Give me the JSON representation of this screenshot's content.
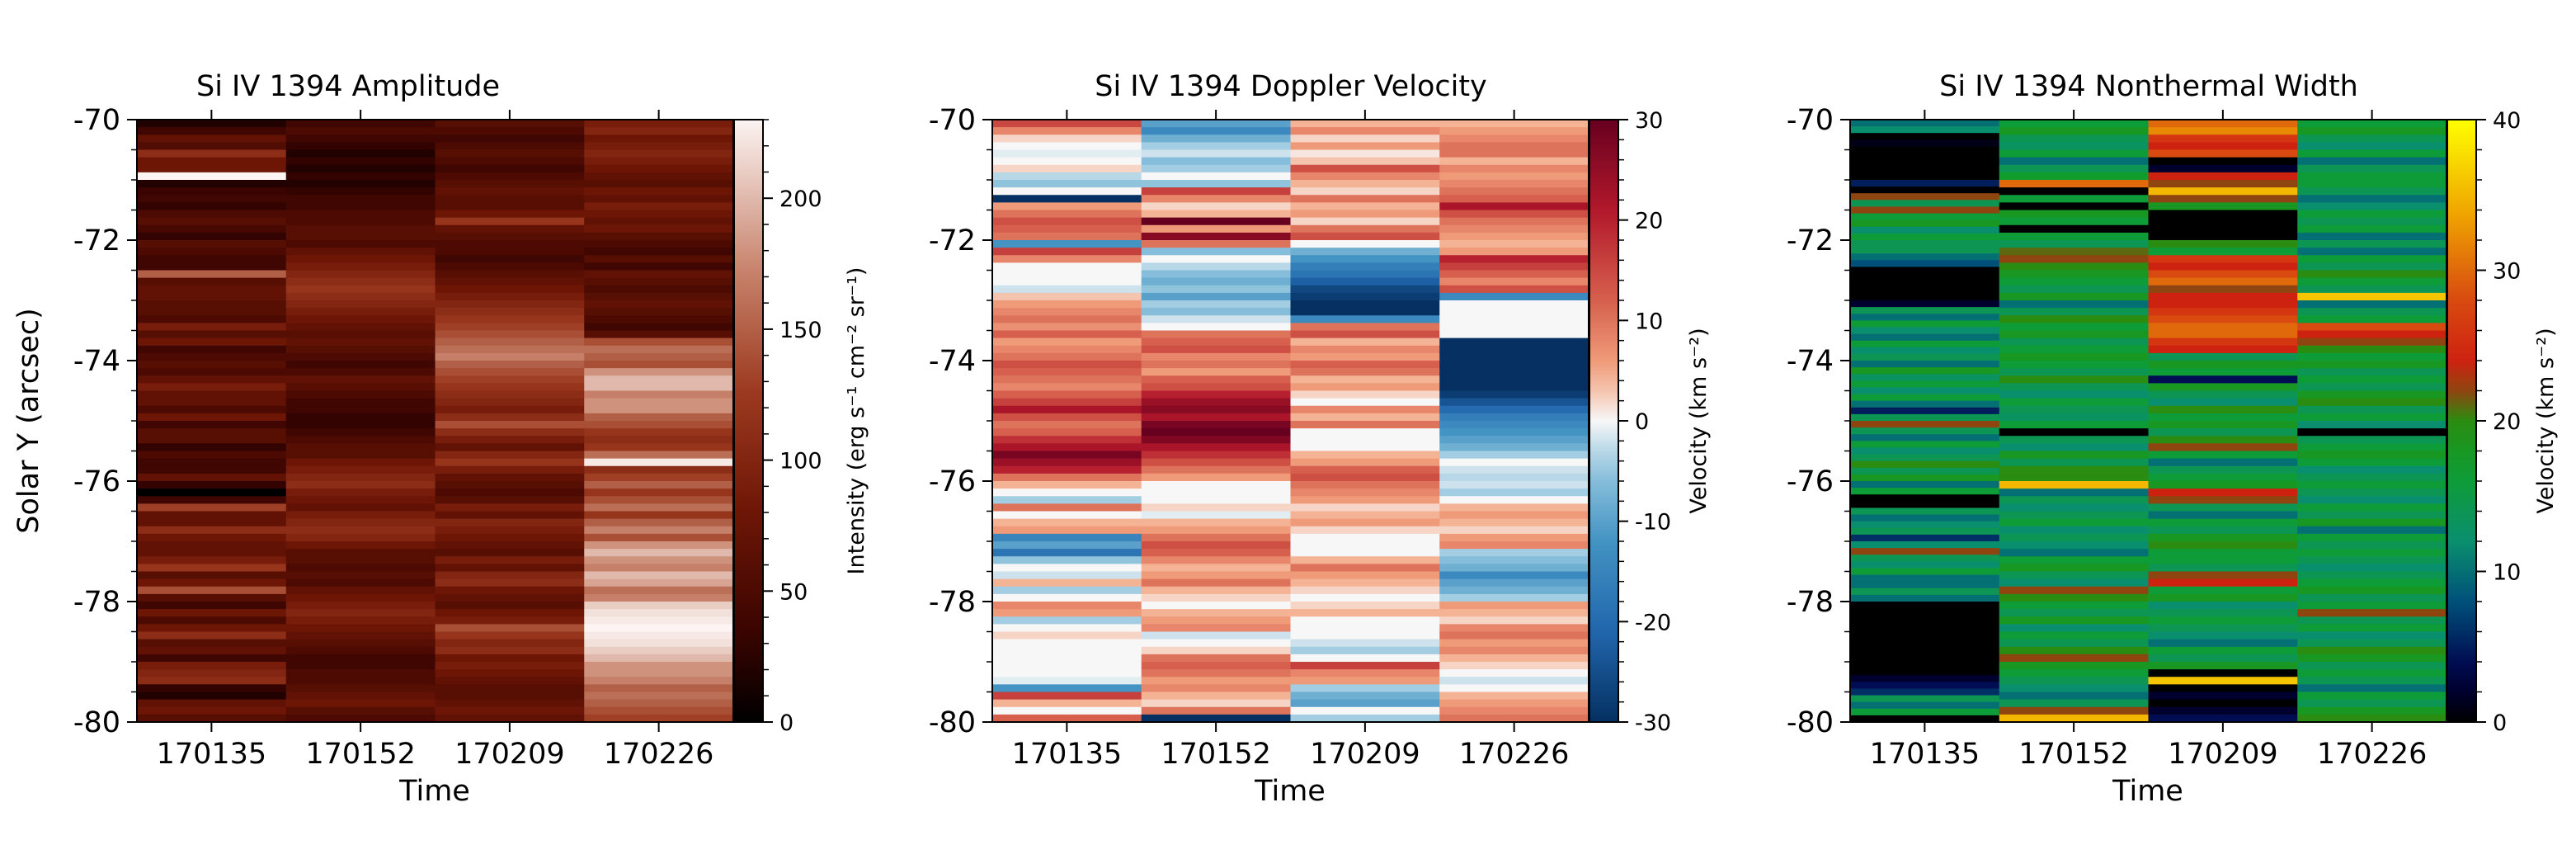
{
  "chart_data": [
    {
      "type": "heatmap",
      "title": "Si IV 1394 Amplitude",
      "xlabel": "Time",
      "ylabel": "Solar Y (arcsec)",
      "x_ticklabels": [
        "170135",
        "170152",
        "170209",
        "170226"
      ],
      "y_ticklabels": [
        "-70",
        "-72",
        "-74",
        "-76",
        "-78",
        "-80"
      ],
      "y_ticks": [
        -70,
        -72,
        -74,
        -76,
        -78,
        -80
      ],
      "ylim": [
        -80,
        -70
      ],
      "colorbar": {
        "label": "Intensity (erg s⁻¹ cm⁻² sr⁻¹)",
        "colormap": "Reds-dark",
        "range": [
          0,
          230
        ],
        "ticks": [
          0,
          50,
          100,
          150,
          200
        ],
        "ticklabels": [
          "0",
          "50",
          "100",
          "150",
          "200"
        ]
      },
      "columns": [
        [
          20,
          40,
          70,
          55,
          110,
          80,
          80,
          235,
          20,
          35,
          40,
          30,
          50,
          60,
          45,
          30,
          60,
          50,
          40,
          40,
          150,
          60,
          70,
          70,
          60,
          60,
          50,
          90,
          60,
          80,
          40,
          50,
          60,
          50,
          70,
          90,
          70,
          70,
          50,
          80,
          40,
          60,
          60,
          30,
          50,
          40,
          40,
          70,
          30,
          0,
          40,
          130,
          70,
          70,
          110,
          80,
          70,
          70,
          90,
          120,
          60,
          80,
          140,
          60,
          40,
          80,
          50,
          80,
          110,
          60,
          70,
          40,
          90,
          100,
          110,
          30,
          20,
          70,
          80,
          60
        ],
        [
          40,
          50,
          40,
          30,
          20,
          30,
          20,
          30,
          20,
          30,
          40,
          40,
          50,
          50,
          60,
          60,
          50,
          70,
          80,
          90,
          100,
          110,
          120,
          110,
          100,
          90,
          80,
          70,
          60,
          70,
          60,
          50,
          40,
          50,
          70,
          60,
          50,
          40,
          40,
          30,
          30,
          40,
          50,
          60,
          60,
          80,
          90,
          100,
          110,
          90,
          80,
          70,
          90,
          100,
          110,
          100,
          80,
          60,
          60,
          50,
          60,
          50,
          70,
          80,
          90,
          100,
          90,
          80,
          70,
          60,
          50,
          40,
          40,
          50,
          50,
          60,
          70,
          80,
          60,
          50
        ],
        [
          60,
          50,
          40,
          50,
          60,
          50,
          40,
          50,
          60,
          70,
          60,
          60,
          80,
          120,
          70,
          60,
          50,
          50,
          40,
          50,
          60,
          70,
          80,
          90,
          100,
          110,
          120,
          130,
          140,
          150,
          160,
          170,
          150,
          140,
          130,
          120,
          110,
          100,
          90,
          110,
          140,
          110,
          90,
          70,
          100,
          120,
          90,
          70,
          60,
          50,
          60,
          90,
          70,
          100,
          90,
          80,
          70,
          60,
          90,
          70,
          100,
          110,
          80,
          70,
          60,
          80,
          90,
          140,
          120,
          100,
          110,
          80,
          90,
          80,
          70,
          60,
          60,
          70,
          80,
          70
        ],
        [
          90,
          100,
          80,
          90,
          100,
          90,
          80,
          70,
          60,
          80,
          70,
          90,
          80,
          70,
          80,
          60,
          50,
          40,
          60,
          40,
          70,
          60,
          50,
          60,
          70,
          60,
          50,
          40,
          60,
          140,
          160,
          150,
          140,
          180,
          200,
          200,
          170,
          180,
          180,
          150,
          140,
          120,
          110,
          120,
          160,
          225,
          110,
          130,
          150,
          120,
          140,
          160,
          120,
          150,
          170,
          140,
          180,
          200,
          180,
          170,
          200,
          190,
          160,
          170,
          210,
          220,
          225,
          230,
          225,
          220,
          210,
          200,
          180,
          180,
          170,
          150,
          160,
          150,
          140,
          130
        ]
      ]
    },
    {
      "type": "heatmap",
      "title": "Si IV 1394 Doppler Velocity",
      "xlabel": "Time",
      "x_ticklabels": [
        "170135",
        "170152",
        "170209",
        "170226"
      ],
      "y_ticklabels": [
        "-70",
        "-72",
        "-74",
        "-76",
        "-78",
        "-80"
      ],
      "y_ticks": [
        -70,
        -72,
        -74,
        -76,
        -78,
        -80
      ],
      "ylim": [
        -80,
        -70
      ],
      "colorbar": {
        "label": "Velocity (km s⁻²)",
        "colormap": "RdBu_r",
        "range": [
          -30,
          30
        ],
        "ticks": [
          -30,
          -20,
          -10,
          0,
          10,
          20,
          30
        ],
        "ticklabels": [
          "-30",
          "-20",
          "-10",
          "0",
          "10",
          "20",
          "30"
        ]
      },
      "columns": [
        [
          15,
          8,
          2,
          0,
          -1,
          0,
          2,
          -3,
          -5,
          0,
          -30,
          6,
          10,
          14,
          12,
          10,
          -12,
          16,
          8,
          0,
          0,
          0,
          -2,
          3,
          6,
          8,
          10,
          7,
          12,
          6,
          8,
          10,
          14,
          12,
          10,
          8,
          12,
          16,
          22,
          14,
          10,
          12,
          18,
          22,
          28,
          24,
          20,
          10,
          4,
          0,
          -4,
          10,
          0,
          4,
          6,
          -15,
          -10,
          -18,
          -5,
          0,
          -2,
          4,
          -4,
          0,
          8,
          6,
          -4,
          0,
          2,
          0,
          0,
          0,
          0,
          0,
          -1,
          -12,
          16,
          4,
          0,
          12
        ],
        [
          -10,
          -14,
          -8,
          -4,
          -2,
          -6,
          -4,
          0,
          -5,
          16,
          8,
          2,
          4,
          30,
          6,
          26,
          10,
          -6,
          0,
          -3,
          -6,
          -8,
          -5,
          -10,
          -4,
          -6,
          -2,
          0,
          10,
          12,
          14,
          8,
          10,
          6,
          12,
          14,
          20,
          24,
          26,
          22,
          28,
          30,
          27,
          22,
          18,
          14,
          10,
          6,
          0,
          0,
          0,
          2,
          -1,
          4,
          6,
          10,
          14,
          12,
          8,
          4,
          6,
          10,
          4,
          2,
          0,
          4,
          6,
          8,
          -2,
          0,
          2,
          10,
          12,
          10,
          6,
          8,
          4,
          2,
          10,
          -30
        ],
        [
          4,
          8,
          2,
          6,
          1,
          3,
          14,
          8,
          4,
          2,
          10,
          4,
          6,
          2,
          10,
          14,
          0,
          -8,
          -12,
          -16,
          -18,
          -22,
          -26,
          -28,
          -30,
          -30,
          -14,
          10,
          14,
          4,
          8,
          6,
          12,
          10,
          4,
          6,
          2,
          0,
          8,
          4,
          10,
          0,
          0,
          0,
          4,
          6,
          12,
          14,
          10,
          8,
          6,
          2,
          4,
          6,
          2,
          0,
          0,
          0,
          4,
          10,
          6,
          4,
          2,
          0,
          2,
          4,
          0,
          0,
          0,
          -2,
          -4,
          0,
          16,
          8,
          6,
          -4,
          -8,
          -10,
          0,
          -4
        ],
        [
          4,
          6,
          8,
          10,
          10,
          4,
          8,
          6,
          8,
          10,
          12,
          22,
          14,
          10,
          8,
          6,
          4,
          6,
          20,
          16,
          12,
          8,
          14,
          -14,
          0,
          0,
          0,
          0,
          0,
          -30,
          -30,
          -30,
          -30,
          -30,
          -30,
          -30,
          -28,
          -24,
          -20,
          -16,
          -14,
          -12,
          -10,
          -8,
          -4,
          0,
          -2,
          -3,
          -2,
          -4,
          0,
          4,
          6,
          4,
          2,
          6,
          8,
          -4,
          -6,
          -8,
          -14,
          -10,
          -8,
          -4,
          6,
          4,
          2,
          8,
          10,
          6,
          8,
          4,
          2,
          0,
          -2,
          0,
          4,
          6,
          8,
          10
        ]
      ]
    },
    {
      "type": "heatmap",
      "title": "Si IV 1394 Nonthermal Width",
      "xlabel": "Time",
      "x_ticklabels": [
        "170135",
        "170152",
        "170209",
        "170226"
      ],
      "y_ticklabels": [
        "-70",
        "-72",
        "-74",
        "-76",
        "-78",
        "-80"
      ],
      "y_ticks": [
        -70,
        -72,
        -74,
        -76,
        -78,
        -80
      ],
      "ylim": [
        -80,
        -70
      ],
      "colorbar": {
        "label": "Velocity (km s⁻²)",
        "colormap": "rainbow-dark",
        "range": [
          0,
          40
        ],
        "ticks": [
          0,
          10,
          20,
          30,
          40
        ],
        "ticklabels": [
          "0",
          "10",
          "20",
          "30",
          "40"
        ]
      },
      "columns": [
        [
          10,
          12,
          0,
          1,
          0,
          0,
          0,
          0,
          0,
          5,
          0,
          22,
          14,
          22,
          16,
          18,
          12,
          16,
          14,
          14,
          10,
          8,
          0,
          0,
          0,
          0,
          0,
          2,
          14,
          10,
          16,
          12,
          10,
          16,
          12,
          14,
          10,
          18,
          13,
          16,
          12,
          16,
          10,
          5,
          14,
          22,
          14,
          10,
          16,
          12,
          14,
          20,
          14,
          18,
          10,
          16,
          0,
          0,
          14,
          10,
          12,
          14,
          6,
          12,
          22,
          14,
          12,
          16,
          10,
          10,
          14,
          10,
          0,
          0,
          0,
          0,
          0,
          0,
          0,
          0,
          0,
          0,
          0,
          2,
          4,
          6,
          14,
          10,
          16,
          0
        ],
        [
          16,
          18,
          14,
          13,
          16,
          10,
          14,
          17,
          30,
          0,
          16,
          0,
          18,
          16,
          0,
          16,
          14,
          21,
          22,
          20,
          18,
          16,
          14,
          18,
          10,
          14,
          20,
          16,
          18,
          14,
          16,
          18,
          16,
          14,
          20,
          14,
          12,
          16,
          14,
          13,
          16,
          0,
          14,
          12,
          18,
          14,
          20,
          20,
          35,
          10,
          14,
          12,
          14,
          16,
          12,
          14,
          12,
          10,
          16,
          18,
          14,
          12,
          22,
          20,
          16,
          14,
          18,
          12,
          16,
          14,
          20,
          22,
          18,
          16,
          14,
          12,
          10,
          14,
          22,
          35
        ],
        [
          30,
          32,
          26,
          24,
          28,
          0,
          2,
          24,
          22,
          35,
          22,
          18,
          0,
          0,
          0,
          0,
          20,
          16,
          26,
          24,
          28,
          30,
          22,
          24,
          24,
          26,
          28,
          30,
          30,
          26,
          24,
          14,
          18,
          16,
          4,
          18,
          14,
          12,
          20,
          16,
          18,
          14,
          20,
          22,
          16,
          10,
          14,
          16,
          18,
          24,
          22,
          14,
          10,
          16,
          14,
          18,
          20,
          16,
          16,
          14,
          22,
          24,
          16,
          18,
          12,
          14,
          16,
          14,
          12,
          10,
          16,
          14,
          18,
          0,
          36,
          0,
          2,
          0,
          2,
          4
        ],
        [
          16,
          18,
          14,
          12,
          16,
          10,
          14,
          16,
          16,
          14,
          10,
          12,
          16,
          14,
          16,
          10,
          14,
          10,
          16,
          14,
          20,
          16,
          14,
          36,
          10,
          14,
          16,
          28,
          24,
          22,
          20,
          16,
          18,
          14,
          16,
          14,
          18,
          20,
          14,
          16,
          12,
          0,
          14,
          16,
          18,
          16,
          12,
          14,
          16,
          14,
          12,
          16,
          14,
          18,
          10,
          16,
          14,
          16,
          14,
          12,
          14,
          16,
          18,
          14,
          16,
          22,
          14,
          16,
          12,
          14,
          20,
          18,
          14,
          16,
          14,
          10,
          16,
          14,
          18,
          20
        ]
      ]
    }
  ]
}
